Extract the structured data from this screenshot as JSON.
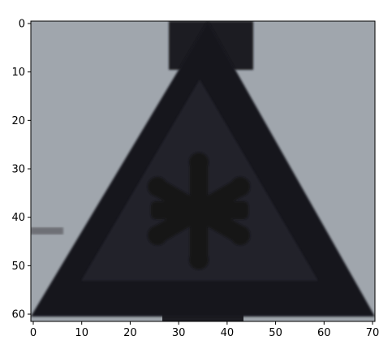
{
  "figure": {
    "kind": "image-display",
    "image_subject": "triangular warning road sign with snowflake symbol (ice/snow warning)",
    "image_pixel_grid": {
      "width": 71,
      "height": 62
    },
    "colors": {
      "background_sky": "#a3aab0",
      "sign_outer": "#16161d",
      "sign_inner": "#23232b",
      "snowflake": "#141419",
      "frame": "#000000"
    },
    "x_axis": {
      "range": [
        -0.5,
        70.5
      ],
      "ticks": [
        0,
        10,
        20,
        30,
        40,
        50,
        60,
        70
      ],
      "tick_labels": [
        "0",
        "10",
        "20",
        "30",
        "40",
        "50",
        "60",
        "70"
      ]
    },
    "y_axis": {
      "range": [
        61.5,
        -0.5
      ],
      "ticks": [
        0,
        10,
        20,
        30,
        40,
        50,
        60
      ],
      "tick_labels": [
        "0",
        "10",
        "20",
        "30",
        "40",
        "50",
        "60"
      ]
    }
  }
}
